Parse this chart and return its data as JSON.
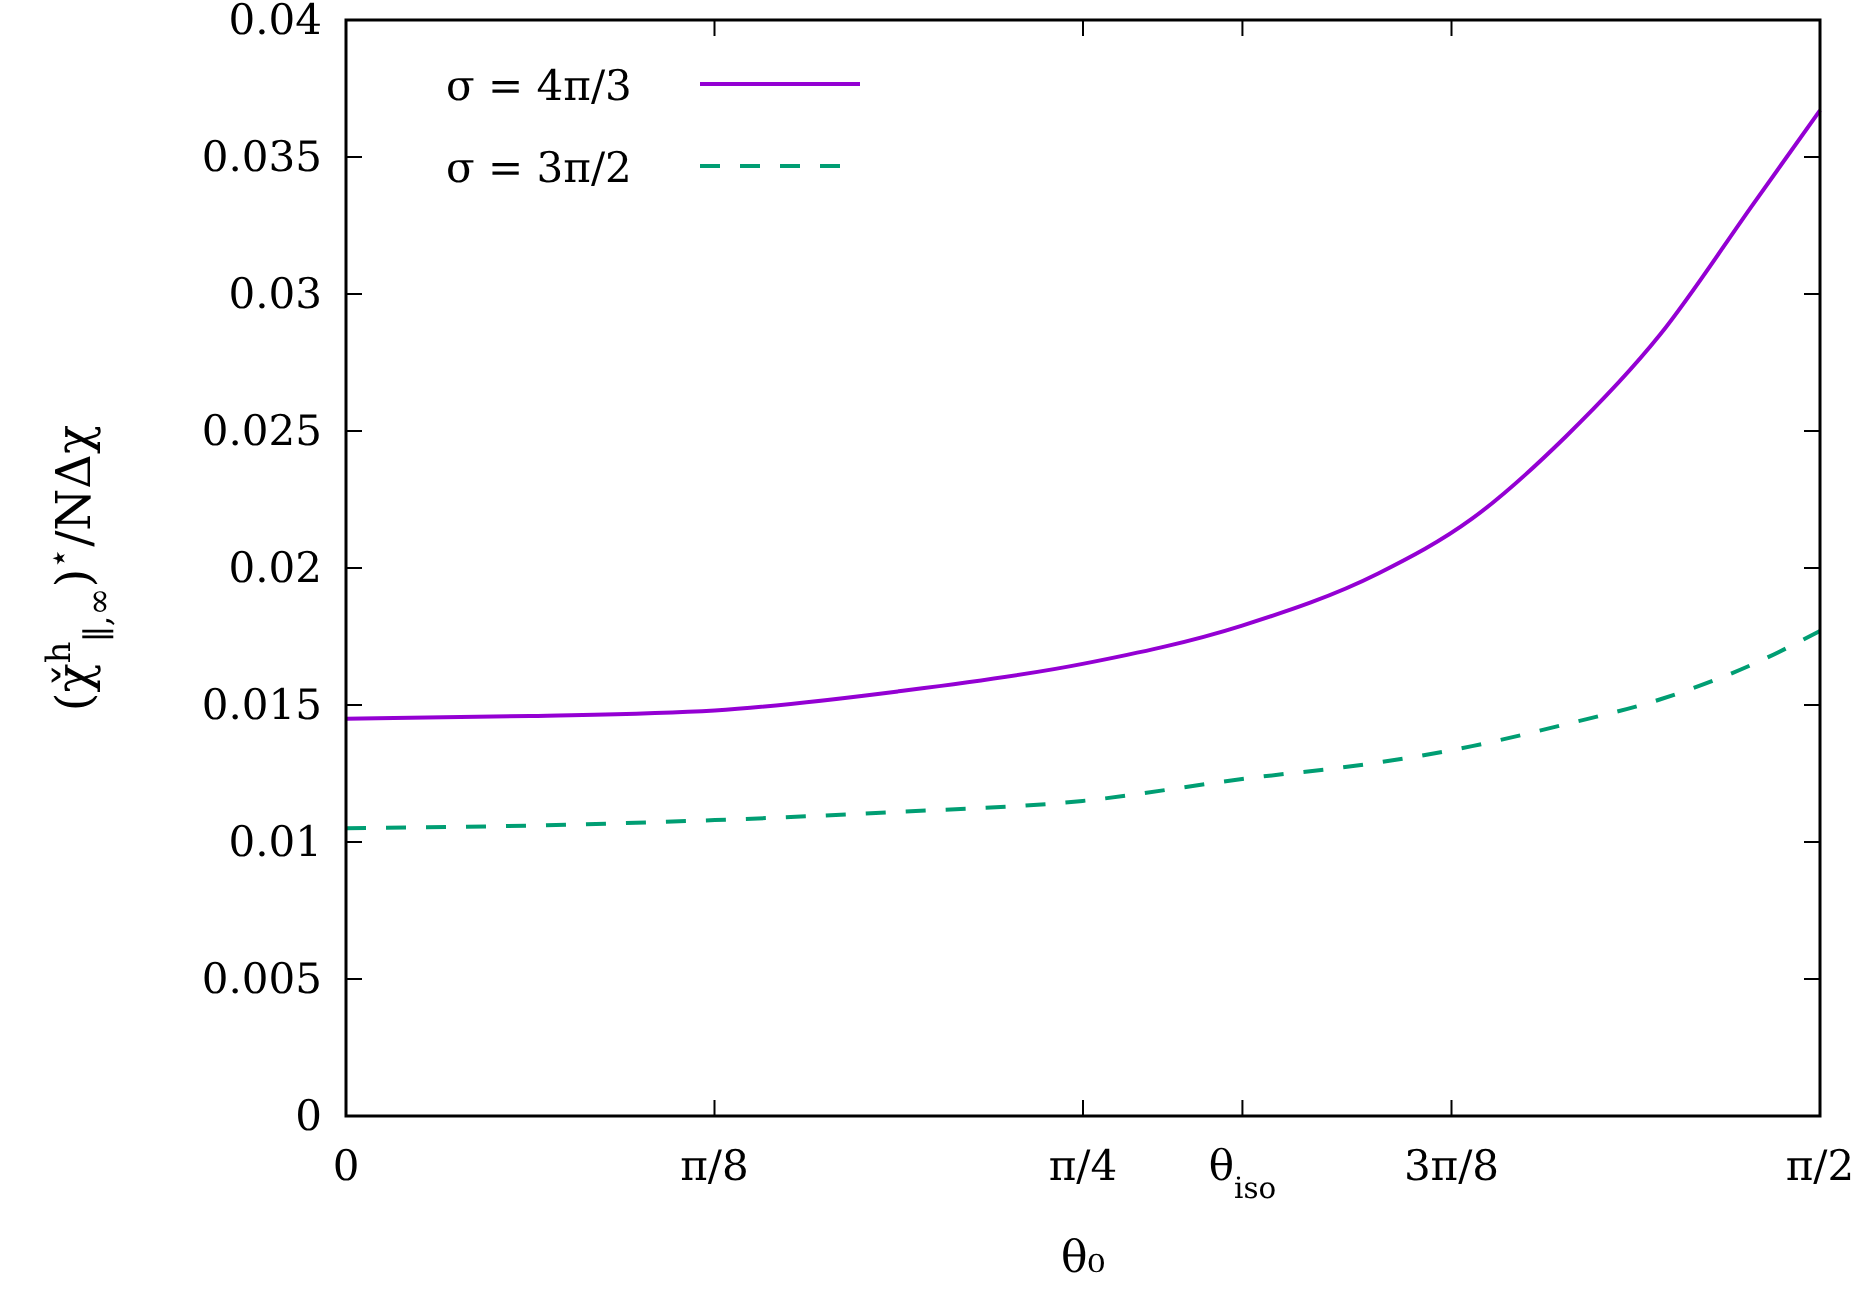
{
  "chart_data": {
    "type": "line",
    "xlabel": "θ₀",
    "ylabel": "(χ̌$^{h}$$_{∥,∞}$)$^{⋆}$/NΔχ",
    "x": [
      0,
      0.196,
      0.393,
      0.589,
      0.785,
      0.955,
      1.1,
      1.2,
      1.3,
      1.4,
      1.5,
      1.5708
    ],
    "series": [
      {
        "name": "σ = 4π/3",
        "color": "#9400d3",
        "line_style": "solid",
        "values": [
          0.0145,
          0.0146,
          0.0148,
          0.0155,
          0.0165,
          0.0179,
          0.0198,
          0.0218,
          0.0248,
          0.0285,
          0.0333,
          0.0367
        ]
      },
      {
        "name": "σ = 3π/2",
        "color": "#009e73",
        "line_style": "dashed",
        "values": [
          0.0105,
          0.0106,
          0.0108,
          0.0111,
          0.0115,
          0.0123,
          0.0129,
          0.0135,
          0.0143,
          0.0152,
          0.0165,
          0.0177
        ]
      }
    ],
    "xlim": [
      0,
      1.5708
    ],
    "xticks": [
      0,
      {
        "value": 0.3927,
        "label": "π/8"
      },
      {
        "value": 0.7854,
        "label": "π/4"
      },
      {
        "value": 0.9553,
        "label": "θ$_{iso}$"
      },
      {
        "value": 1.1781,
        "label": "3π/8"
      },
      {
        "value": 1.5708,
        "label": "π/2"
      }
    ],
    "ylim": [
      0,
      0.04
    ],
    "yticks": [
      0,
      0.005,
      0.01,
      0.015,
      0.02,
      0.025,
      0.03,
      0.035,
      0.04
    ],
    "grid": false,
    "legend": "top left"
  }
}
